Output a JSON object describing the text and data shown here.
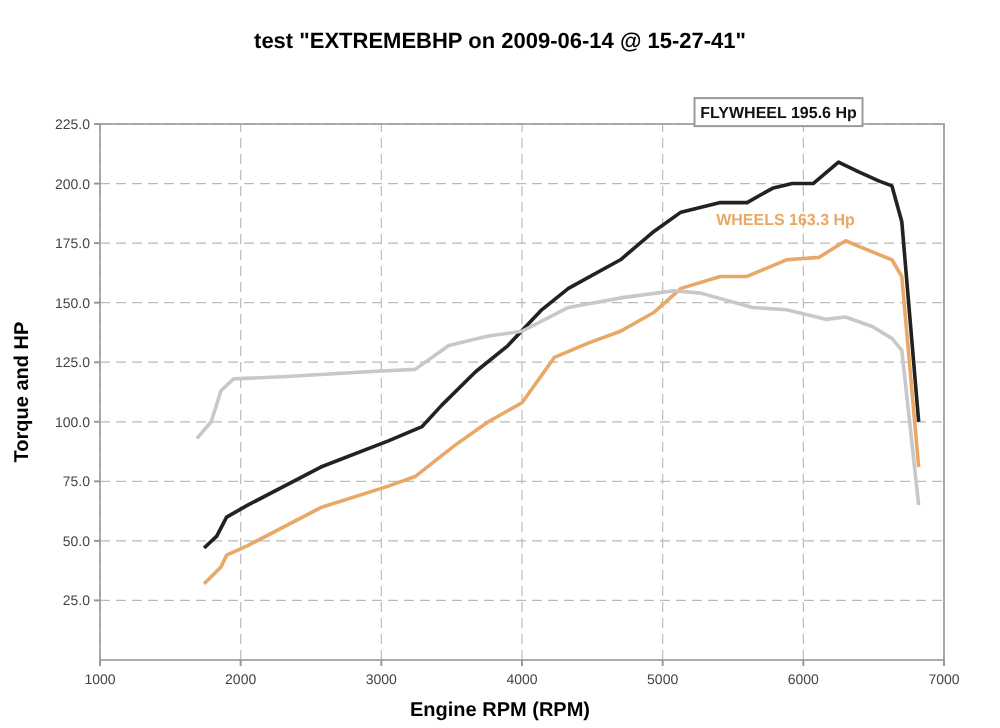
{
  "chart_data": {
    "type": "line",
    "title": "test \"EXTREMEBHP on 2009-06-14 @ 15-27-41\"",
    "xlabel": "Engine RPM (RPM)",
    "ylabel": "Torque and HP",
    "xlim": [
      1000,
      7000
    ],
    "xticks": [
      {
        "value": 1000,
        "label": "1000"
      },
      2000,
      3000,
      4000,
      5000,
      6000,
      7000
    ],
    "ylim": [
      0,
      225
    ],
    "yticks": [
      {
        "value": 25,
        "label": "25.0"
      },
      {
        "value": 50,
        "label": "50.0"
      },
      {
        "value": 75,
        "label": "75.0"
      },
      {
        "value": 100,
        "label": "100.0"
      },
      {
        "value": 125,
        "label": "125.0"
      },
      {
        "value": 150,
        "label": "150.0"
      },
      {
        "value": 175,
        "label": "175.0"
      },
      {
        "value": 200,
        "label": "200.0"
      },
      {
        "value": 225,
        "label": "225.0"
      }
    ],
    "grid": true,
    "marker": "none",
    "line_style": "solid",
    "series": [
      {
        "name": "FLYWHEEL 195.6 Hp",
        "color": "#222222",
        "x": [
          1740,
          1830,
          1900,
          2050,
          2570,
          3050,
          3290,
          3430,
          3670,
          3900,
          4140,
          4330,
          4700,
          4940,
          5130,
          5410,
          5600,
          5780,
          5920,
          6070,
          6250,
          6390,
          6540,
          6630,
          6700,
          6820
        ],
        "values": [
          47,
          52,
          60,
          65,
          81,
          92,
          98,
          107,
          121,
          132,
          147,
          156,
          168,
          180,
          188,
          192,
          192,
          198,
          200,
          200,
          209,
          205,
          201,
          199,
          184,
          100
        ]
      },
      {
        "name": "WHEELS 163.3 Hp",
        "color": "#e8a868",
        "x": [
          1740,
          1860,
          1900,
          2050,
          2570,
          3050,
          3240,
          3520,
          3760,
          4000,
          4230,
          4470,
          4700,
          4940,
          5130,
          5410,
          5600,
          5880,
          6110,
          6300,
          6420,
          6630,
          6700,
          6820
        ],
        "values": [
          32,
          39,
          44,
          48,
          64,
          73,
          77,
          90,
          100,
          108,
          127,
          133,
          138,
          146,
          156,
          161,
          161,
          168,
          169,
          176,
          173,
          168,
          161,
          81
        ]
      },
      {
        "color": "#c8c8c8",
        "x": [
          1690,
          1790,
          1860,
          1950,
          2330,
          2900,
          3240,
          3480,
          3760,
          4000,
          4330,
          4700,
          5080,
          5270,
          5640,
          5880,
          6160,
          6300,
          6490,
          6630,
          6700,
          6820
        ],
        "values": [
          93,
          100,
          113,
          118,
          119,
          121,
          122,
          132,
          136,
          138,
          148,
          152,
          155,
          154,
          148,
          147,
          143,
          144,
          140,
          135,
          130,
          65
        ]
      }
    ]
  }
}
